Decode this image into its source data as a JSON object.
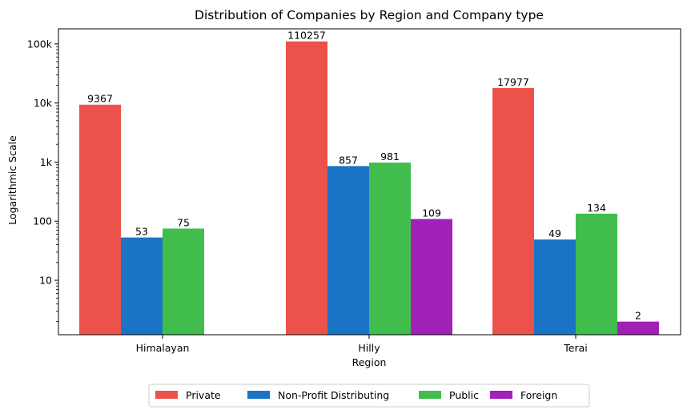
{
  "chart_data": {
    "type": "bar",
    "title": "Distribution of Companies by Region and Company type",
    "xlabel": "Region",
    "ylabel": "Logarithmic Scale",
    "yscale": "log",
    "ylim": [
      1.2,
      180000
    ],
    "yticks": [
      10,
      100,
      1000,
      10000,
      100000
    ],
    "ytick_labels": [
      "10",
      "100",
      "1k",
      "10k",
      "100k"
    ],
    "categories": [
      "Himalayan",
      "Hilly",
      "Terai"
    ],
    "series": [
      {
        "name": "Private",
        "color": "#EB534A",
        "values": [
          9367,
          110257,
          17977
        ]
      },
      {
        "name": "Non-Profit Distributing",
        "color": "#1A73C6",
        "values": [
          53,
          857,
          49
        ]
      },
      {
        "name": "Public",
        "color": "#40BD4C",
        "values": [
          75,
          981,
          134
        ]
      },
      {
        "name": "Foreign",
        "color": "#A020B8",
        "values": [
          null,
          109,
          2
        ]
      }
    ],
    "data_labels": true,
    "grid": false,
    "legend_position": "bottom-center"
  }
}
